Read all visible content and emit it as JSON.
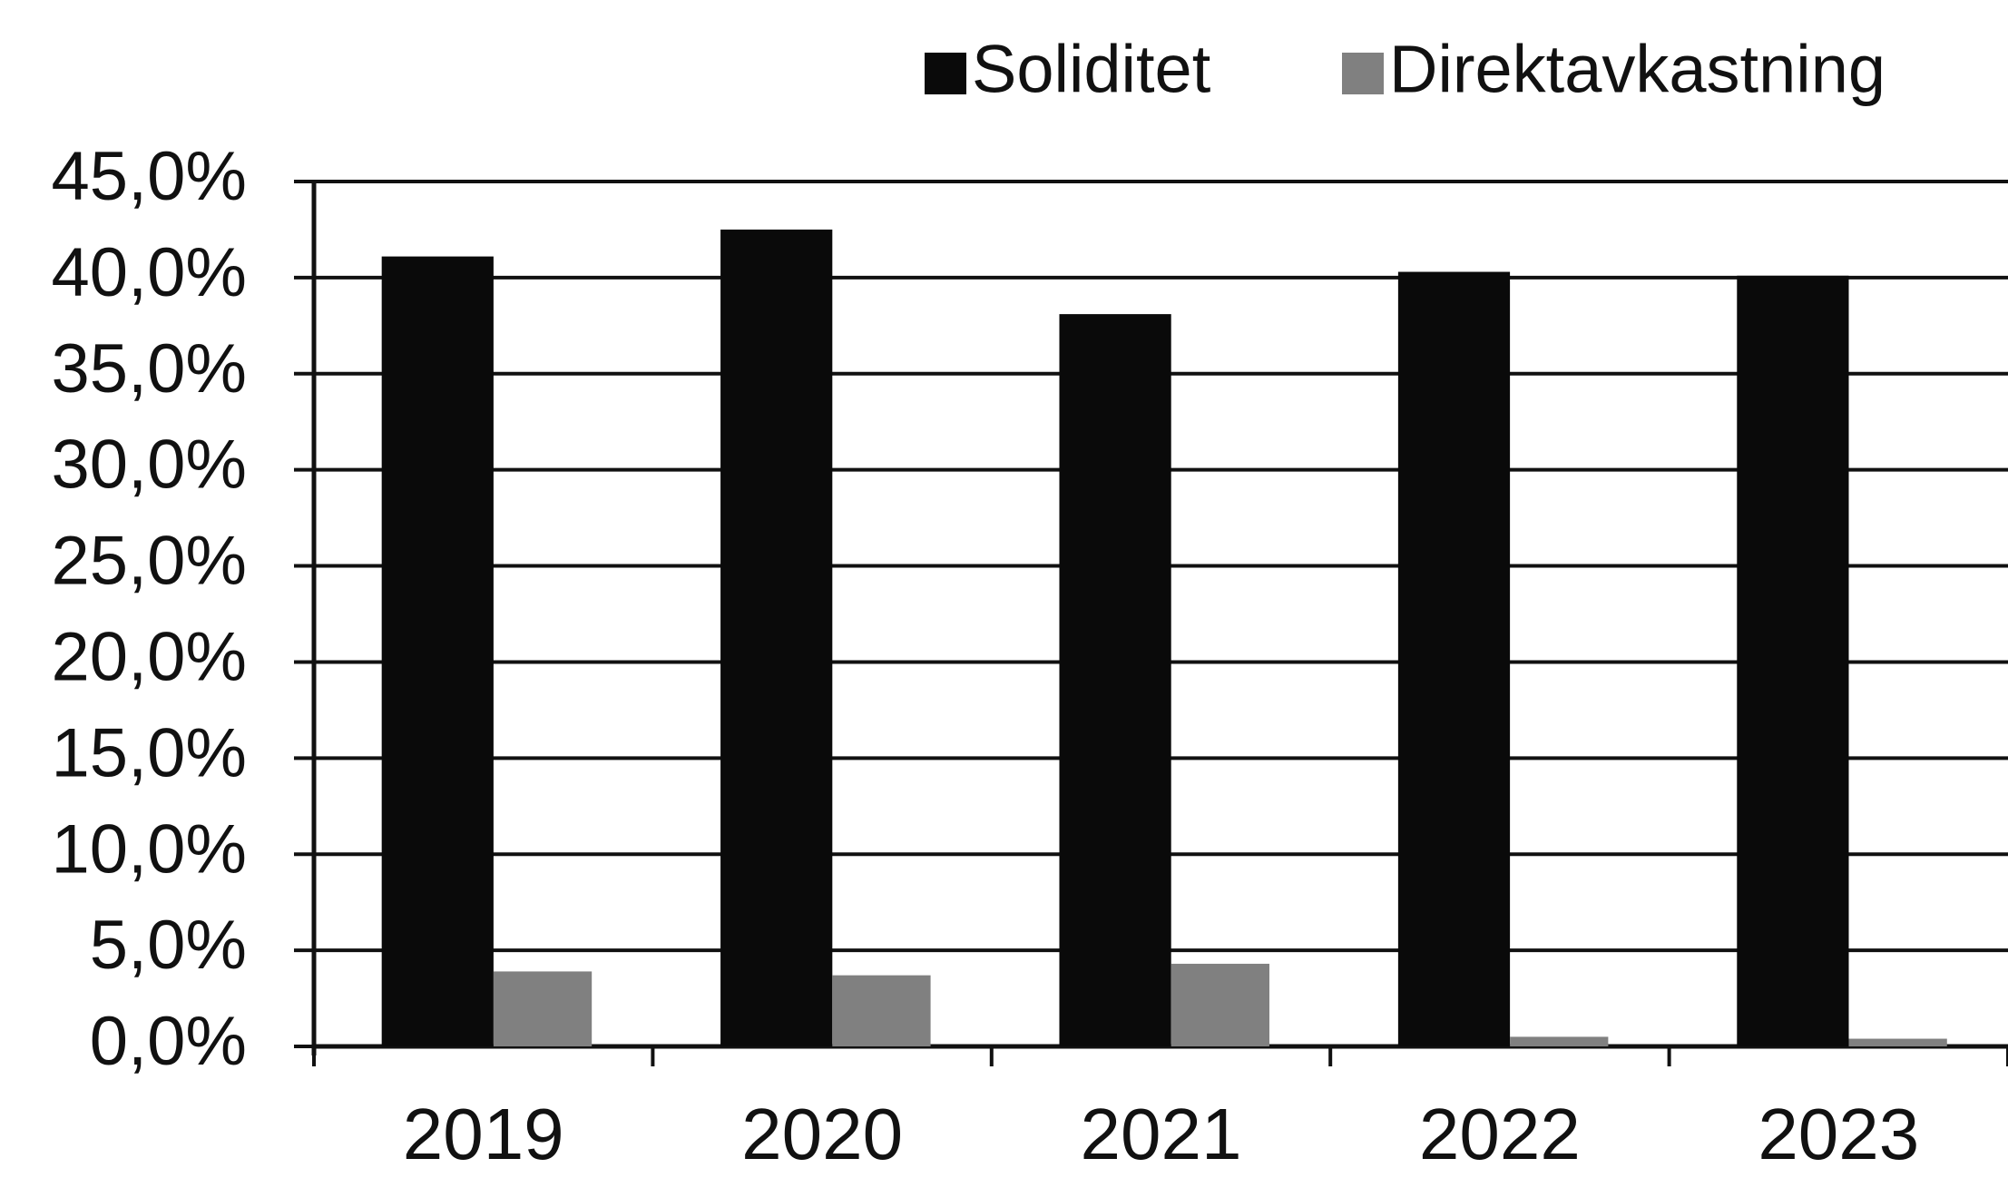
{
  "chart_data": {
    "type": "bar",
    "categories": [
      "2019",
      "2020",
      "2021",
      "2022",
      "2023"
    ],
    "series": [
      {
        "name": "Soliditet",
        "color": "#0a0a0a",
        "values": [
          41.1,
          42.5,
          38.1,
          40.3,
          40.1
        ]
      },
      {
        "name": "Direktavkastning",
        "color": "#808080",
        "values": [
          3.9,
          3.7,
          4.3,
          0.5,
          0.4
        ]
      }
    ],
    "ylim": [
      0,
      45
    ],
    "yticks": [
      {
        "value": 0,
        "label": "0,0%"
      },
      {
        "value": 5,
        "label": "5,0%"
      },
      {
        "value": 10,
        "label": "10,0%"
      },
      {
        "value": 15,
        "label": "15,0%"
      },
      {
        "value": 20,
        "label": "20,0%"
      },
      {
        "value": 25,
        "label": "25,0%"
      },
      {
        "value": 30,
        "label": "30,0%"
      },
      {
        "value": 35,
        "label": "35,0%"
      },
      {
        "value": 40,
        "label": "40,0%"
      },
      {
        "value": 45,
        "label": "45,0%"
      }
    ],
    "grid": true,
    "legend": "top-right"
  }
}
